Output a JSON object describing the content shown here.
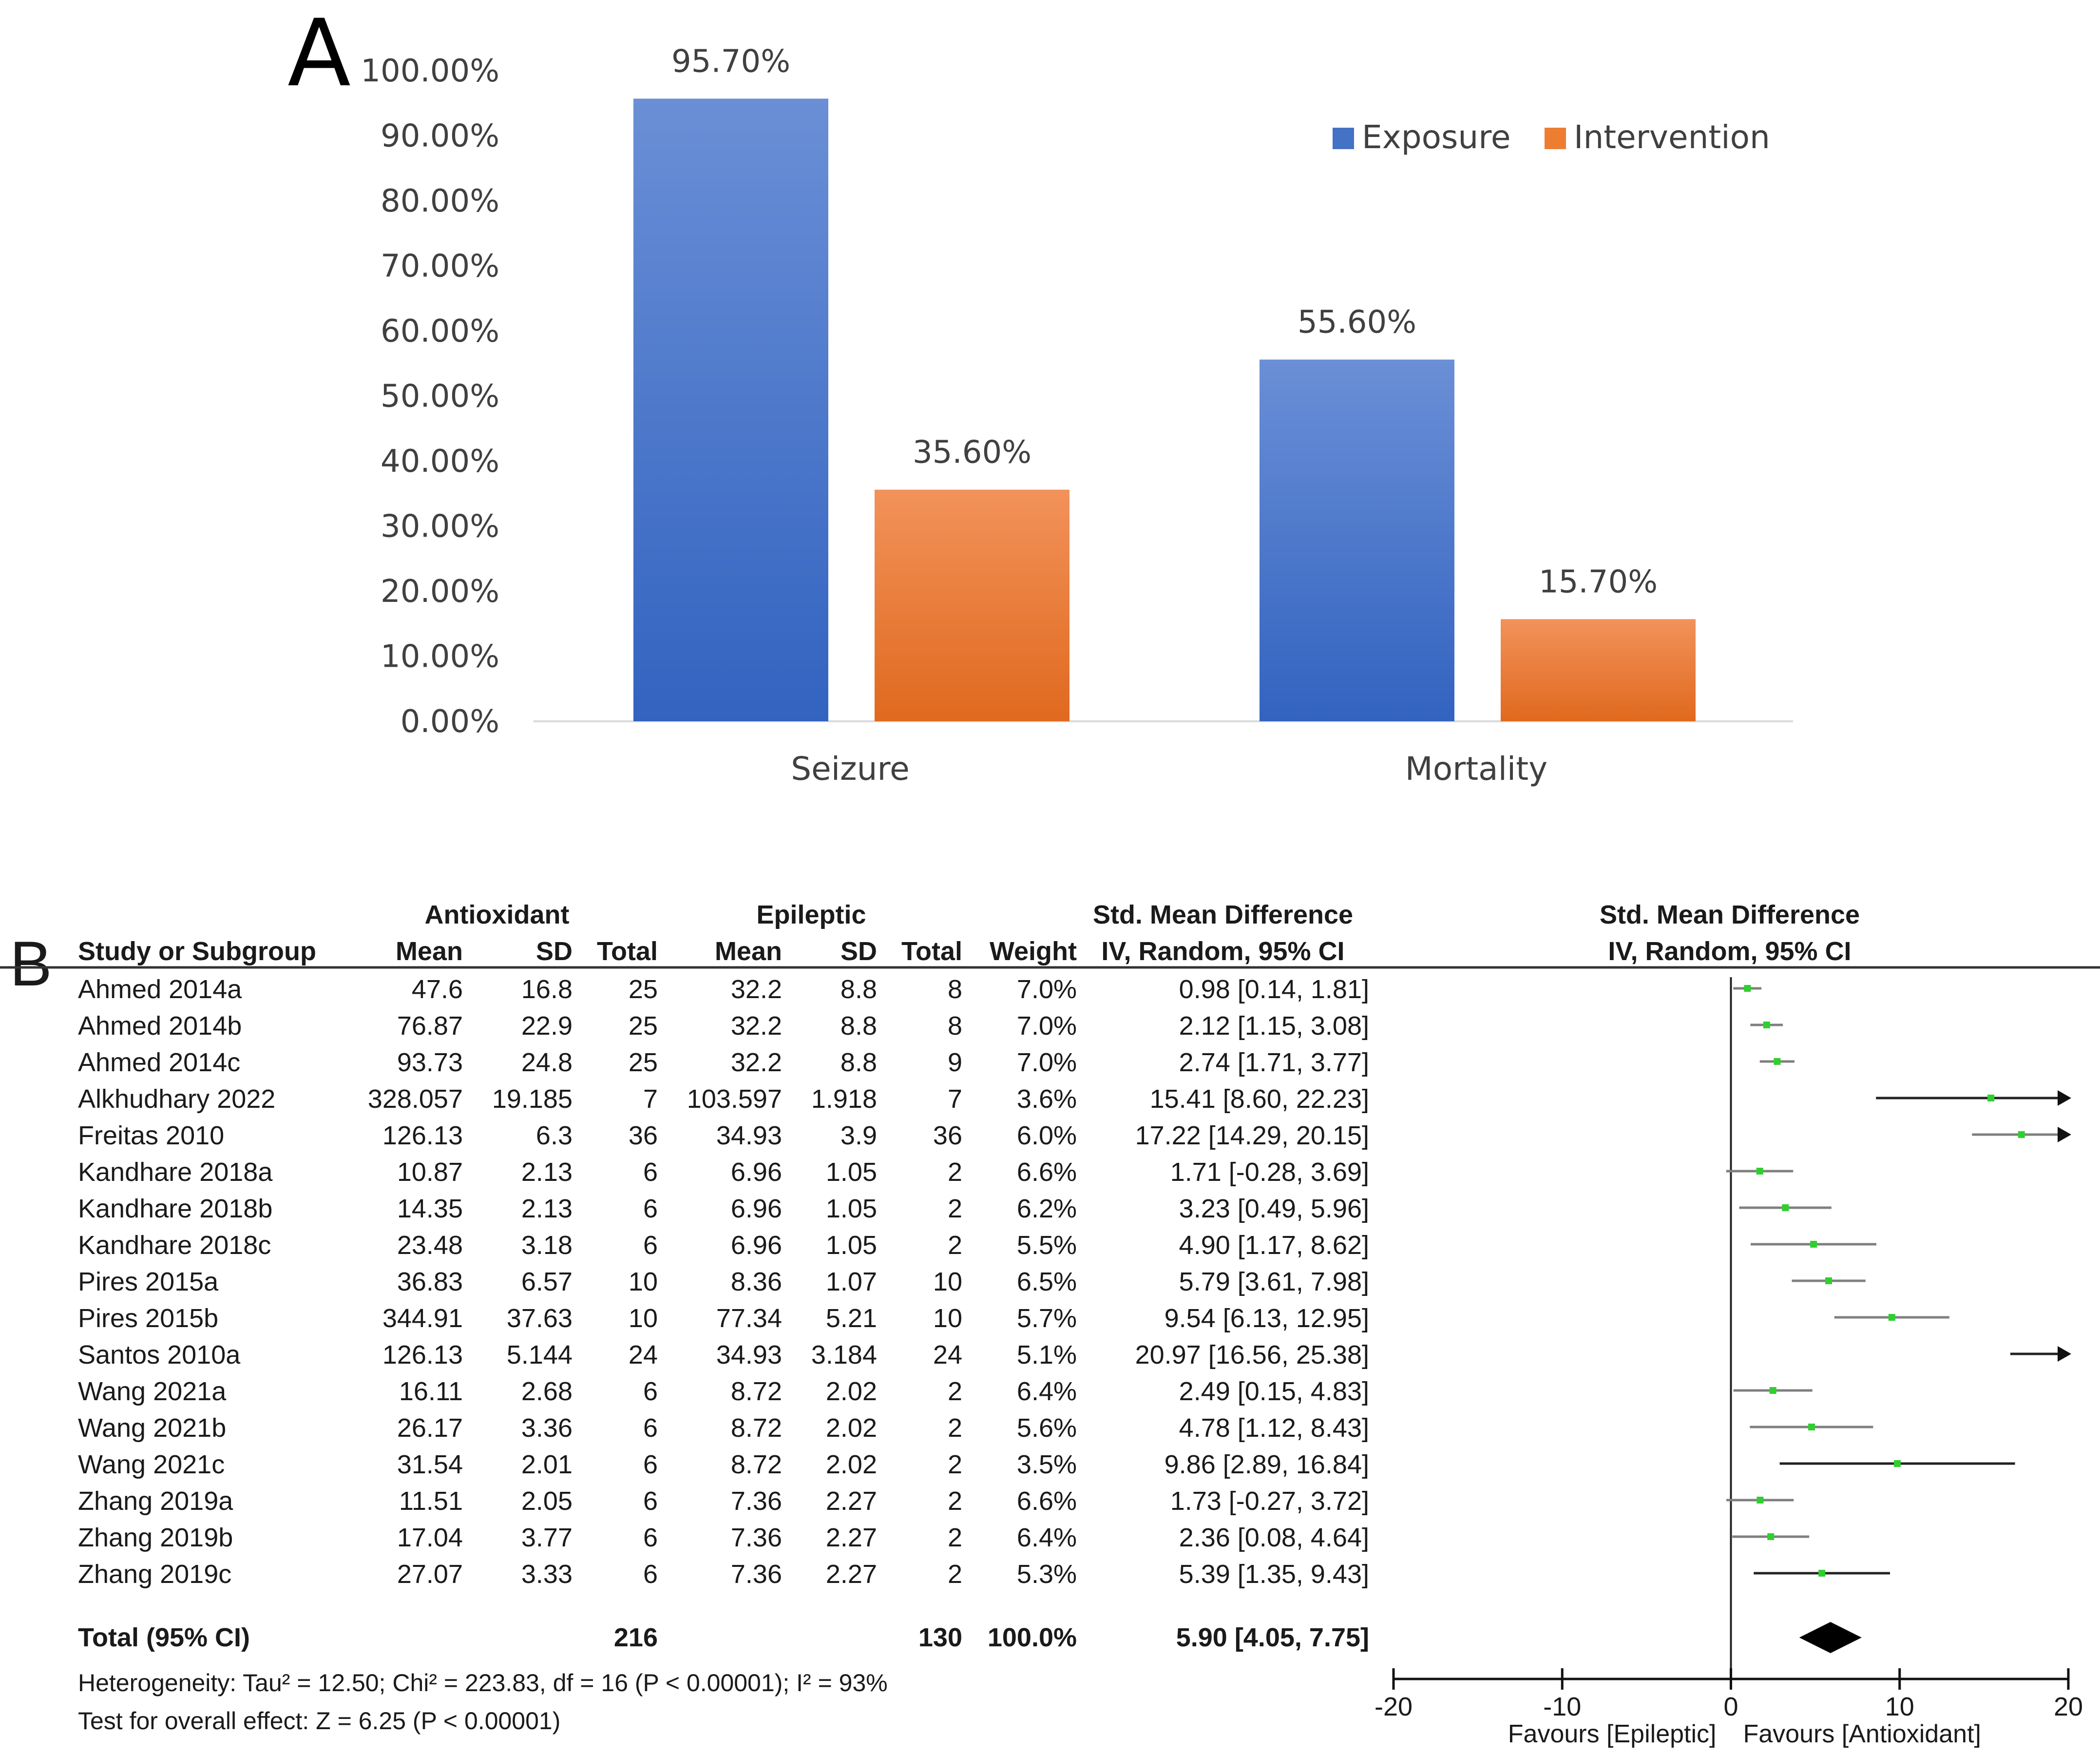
{
  "chart_data": [
    {
      "type": "bar",
      "panel_label": "A",
      "categories": [
        "Seizure",
        "Mortality"
      ],
      "series": [
        {
          "name": "Exposure",
          "values": [
            95.7,
            55.6
          ],
          "color": "#4472c4"
        },
        {
          "name": "Intervention",
          "values": [
            35.6,
            15.7
          ],
          "color": "#ed7d31"
        }
      ],
      "data_labels": [
        [
          "95.70%",
          "55.60%"
        ],
        [
          "35.60%",
          "15.70%"
        ]
      ],
      "y_ticks": [
        "0.00%",
        "10.00%",
        "20.00%",
        "30.00%",
        "40.00%",
        "50.00%",
        "60.00%",
        "70.00%",
        "80.00%",
        "90.00%",
        "100.00%"
      ],
      "ylim": [
        0,
        100
      ],
      "legend_position": "top-right",
      "grid": false
    },
    {
      "type": "forest",
      "panel_label": "B",
      "headers": {
        "study": "Study or Subgroup",
        "group1": "Antioxidant",
        "group2": "Epileptic",
        "mean": "Mean",
        "sd": "SD",
        "total": "Total",
        "weight": "Weight",
        "effect_title": "Std. Mean Difference",
        "effect_method": "IV, Random, 95% CI"
      },
      "studies": [
        {
          "name": "Ahmed 2014a",
          "m1": "47.6",
          "sd1": "16.8",
          "n1": "25",
          "m2": "32.2",
          "sd2": "8.8",
          "n2": "8",
          "weight": "7.0%",
          "ci": "0.98 [0.14, 1.81]",
          "est": 0.98,
          "lo": 0.14,
          "hi": 1.81
        },
        {
          "name": "Ahmed 2014b",
          "m1": "76.87",
          "sd1": "22.9",
          "n1": "25",
          "m2": "32.2",
          "sd2": "8.8",
          "n2": "8",
          "weight": "7.0%",
          "ci": "2.12 [1.15, 3.08]",
          "est": 2.12,
          "lo": 1.15,
          "hi": 3.08
        },
        {
          "name": "Ahmed 2014c",
          "m1": "93.73",
          "sd1": "24.8",
          "n1": "25",
          "m2": "32.2",
          "sd2": "8.8",
          "n2": "9",
          "weight": "7.0%",
          "ci": "2.74 [1.71, 3.77]",
          "est": 2.74,
          "lo": 1.71,
          "hi": 3.77
        },
        {
          "name": "Alkhudhary 2022",
          "m1": "328.057",
          "sd1": "19.185",
          "n1": "7",
          "m2": "103.597",
          "sd2": "1.918",
          "n2": "7",
          "weight": "3.6%",
          "ci": "15.41 [8.60, 22.23]",
          "est": 15.41,
          "lo": 8.6,
          "hi": 22.23
        },
        {
          "name": "Freitas 2010",
          "m1": "126.13",
          "sd1": "6.3",
          "n1": "36",
          "m2": "34.93",
          "sd2": "3.9",
          "n2": "36",
          "weight": "6.0%",
          "ci": "17.22 [14.29, 20.15]",
          "est": 17.22,
          "lo": 14.29,
          "hi": 20.15
        },
        {
          "name": "Kandhare 2018a",
          "m1": "10.87",
          "sd1": "2.13",
          "n1": "6",
          "m2": "6.96",
          "sd2": "1.05",
          "n2": "2",
          "weight": "6.6%",
          "ci": "1.71 [-0.28, 3.69]",
          "est": 1.71,
          "lo": -0.28,
          "hi": 3.69
        },
        {
          "name": "Kandhare 2018b",
          "m1": "14.35",
          "sd1": "2.13",
          "n1": "6",
          "m2": "6.96",
          "sd2": "1.05",
          "n2": "2",
          "weight": "6.2%",
          "ci": "3.23 [0.49, 5.96]",
          "est": 3.23,
          "lo": 0.49,
          "hi": 5.96
        },
        {
          "name": "Kandhare 2018c",
          "m1": "23.48",
          "sd1": "3.18",
          "n1": "6",
          "m2": "6.96",
          "sd2": "1.05",
          "n2": "2",
          "weight": "5.5%",
          "ci": "4.90 [1.17, 8.62]",
          "est": 4.9,
          "lo": 1.17,
          "hi": 8.62
        },
        {
          "name": "Pires 2015a",
          "m1": "36.83",
          "sd1": "6.57",
          "n1": "10",
          "m2": "8.36",
          "sd2": "1.07",
          "n2": "10",
          "weight": "6.5%",
          "ci": "5.79 [3.61, 7.98]",
          "est": 5.79,
          "lo": 3.61,
          "hi": 7.98
        },
        {
          "name": "Pires 2015b",
          "m1": "344.91",
          "sd1": "37.63",
          "n1": "10",
          "m2": "77.34",
          "sd2": "5.21",
          "n2": "10",
          "weight": "5.7%",
          "ci": "9.54 [6.13, 12.95]",
          "est": 9.54,
          "lo": 6.13,
          "hi": 12.95
        },
        {
          "name": "Santos 2010a",
          "m1": "126.13",
          "sd1": "5.144",
          "n1": "24",
          "m2": "34.93",
          "sd2": "3.184",
          "n2": "24",
          "weight": "5.1%",
          "ci": "20.97 [16.56, 25.38]",
          "est": 20.97,
          "lo": 16.56,
          "hi": 25.38
        },
        {
          "name": "Wang 2021a",
          "m1": "16.11",
          "sd1": "2.68",
          "n1": "6",
          "m2": "8.72",
          "sd2": "2.02",
          "n2": "2",
          "weight": "6.4%",
          "ci": "2.49 [0.15, 4.83]",
          "est": 2.49,
          "lo": 0.15,
          "hi": 4.83
        },
        {
          "name": "Wang 2021b",
          "m1": "26.17",
          "sd1": "3.36",
          "n1": "6",
          "m2": "8.72",
          "sd2": "2.02",
          "n2": "2",
          "weight": "5.6%",
          "ci": "4.78 [1.12, 8.43]",
          "est": 4.78,
          "lo": 1.12,
          "hi": 8.43
        },
        {
          "name": "Wang 2021c",
          "m1": "31.54",
          "sd1": "2.01",
          "n1": "6",
          "m2": "8.72",
          "sd2": "2.02",
          "n2": "2",
          "weight": "3.5%",
          "ci": "9.86 [2.89, 16.84]",
          "est": 9.86,
          "lo": 2.89,
          "hi": 16.84
        },
        {
          "name": "Zhang 2019a",
          "m1": "11.51",
          "sd1": "2.05",
          "n1": "6",
          "m2": "7.36",
          "sd2": "2.27",
          "n2": "2",
          "weight": "6.6%",
          "ci": "1.73 [-0.27, 3.72]",
          "est": 1.73,
          "lo": -0.27,
          "hi": 3.72
        },
        {
          "name": "Zhang 2019b",
          "m1": "17.04",
          "sd1": "3.77",
          "n1": "6",
          "m2": "7.36",
          "sd2": "2.27",
          "n2": "2",
          "weight": "6.4%",
          "ci": "2.36 [0.08, 4.64]",
          "est": 2.36,
          "lo": 0.08,
          "hi": 4.64
        },
        {
          "name": "Zhang 2019c",
          "m1": "27.07",
          "sd1": "3.33",
          "n1": "6",
          "m2": "7.36",
          "sd2": "2.27",
          "n2": "2",
          "weight": "5.3%",
          "ci": "5.39 [1.35, 9.43]",
          "est": 5.39,
          "lo": 1.35,
          "hi": 9.43
        }
      ],
      "total": {
        "label": "Total (95% CI)",
        "n1": "216",
        "n2": "130",
        "weight": "100.0%",
        "ci": "5.90 [4.05, 7.75]",
        "est": 5.9,
        "lo": 4.05,
        "hi": 7.75
      },
      "heterogeneity": "Heterogeneity: Tau² = 12.50; Chi² = 223.83, df = 16 (P < 0.00001); I² = 93%",
      "overall_effect": "Test for overall effect: Z = 6.25 (P < 0.00001)",
      "xlim": [
        -20,
        20
      ],
      "x_ticks": [
        -20,
        -10,
        0,
        10,
        20
      ],
      "x_tick_labels": [
        "-20",
        "-10",
        "0",
        "10",
        "20"
      ],
      "favours_left": "Favours [Epileptic]",
      "favours_right": "Favours [Antioxidant]"
    }
  ]
}
